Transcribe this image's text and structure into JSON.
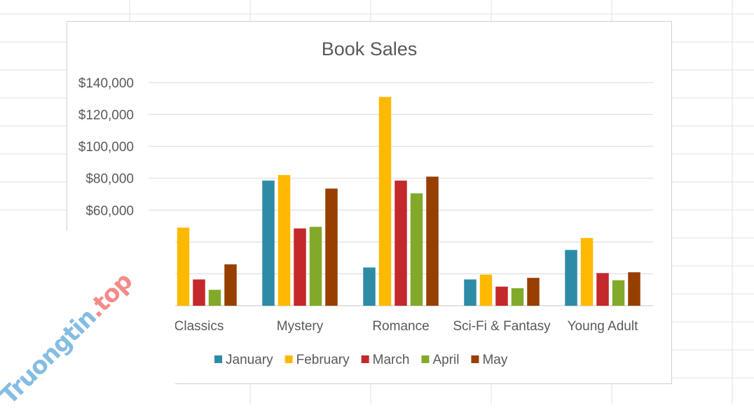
{
  "chart_data": {
    "type": "bar",
    "title": "Book Sales",
    "categories": [
      "Classics",
      "Mystery",
      "Romance",
      "Sci-Fi & Fantasy",
      "Young Adult"
    ],
    "series": [
      {
        "name": "January",
        "color": "#2E8BA6",
        "values": [
          null,
          78500,
          24000,
          16500,
          35000
        ]
      },
      {
        "name": "February",
        "color": "#FFB900",
        "values": [
          49000,
          82000,
          131000,
          19500,
          42500
        ]
      },
      {
        "name": "March",
        "color": "#C4282B",
        "values": [
          16500,
          48500,
          78500,
          12000,
          20500
        ]
      },
      {
        "name": "April",
        "color": "#83A92A",
        "values": [
          10000,
          49500,
          70500,
          11000,
          16000
        ]
      },
      {
        "name": "May",
        "color": "#963F00",
        "values": [
          26000,
          73500,
          81000,
          17500,
          21000
        ]
      }
    ],
    "yticks": [
      "$60,000",
      "$80,000",
      "$100,000",
      "$120,000",
      "$140,000"
    ],
    "ytick_values": [
      60000,
      80000,
      100000,
      120000,
      140000
    ],
    "ylim": [
      0,
      140000
    ],
    "grid": true,
    "legend": "bottom"
  },
  "watermark": {
    "part1": "Truongtin",
    "part2": ".top"
  }
}
